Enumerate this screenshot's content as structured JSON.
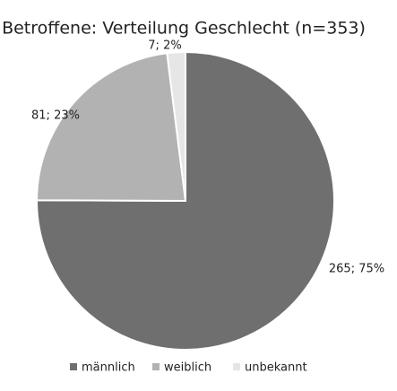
{
  "chart_data": {
    "type": "pie",
    "title": "Betroffene: Verteilung Geschlecht (n=353)",
    "categories": [
      "männlich",
      "weiblich",
      "unbekannt"
    ],
    "values": [
      265,
      81,
      7
    ],
    "value_labels": [
      "265; 75%",
      "81; 23%",
      "7; 2%"
    ],
    "colors": [
      "#6f6f6f",
      "#b2b2b2",
      "#e6e6e6"
    ],
    "legend": "bottom"
  }
}
